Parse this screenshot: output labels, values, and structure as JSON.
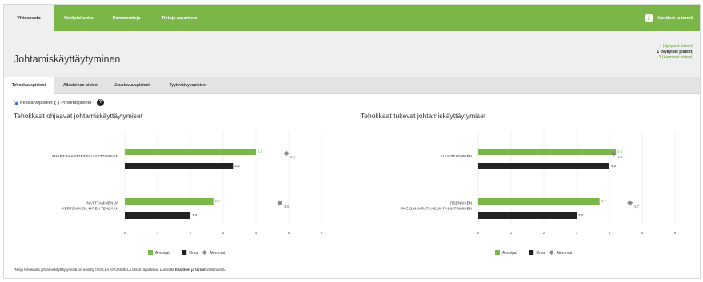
{
  "nav": {
    "tabs": [
      {
        "label": "Yhteenveto",
        "active": true
      },
      {
        "label": "Yksityiskohtia",
        "active": false
      },
      {
        "label": "Kommentteja",
        "active": false
      },
      {
        "label": "Tietoja raportista",
        "active": false
      }
    ],
    "terms_label": "Käsitteet ja termit",
    "terms_icon": "info-icon",
    "accent_color": "#7ab648"
  },
  "header": {
    "title": "Johtamiskäyttäytyminen",
    "legend_lines": [
      {
        "text": "4 (Nykyiset pisteet)",
        "color": "green"
      },
      {
        "text": "1 (Nykyiset pisteet)",
        "color": "dark"
      },
      {
        "text": "3 (Aiemmat pisteet)",
        "color": "green"
      }
    ]
  },
  "subtabs": [
    {
      "label": "Tehokkuuspisteet",
      "active": true
    },
    {
      "label": "Allasteikon pisteet",
      "active": false
    },
    {
      "label": "Joustavuuspisteet",
      "active": false
    },
    {
      "label": "Tyytyväisyyspisteet",
      "active": false
    }
  ],
  "radios": {
    "options": [
      {
        "label": "Keskiarvopisteet",
        "checked": true
      },
      {
        "label": "Prosenttipisteet",
        "checked": false
      }
    ],
    "help_icon": "question-icon"
  },
  "chart_data": [
    {
      "type": "bar",
      "orientation": "horizontal",
      "title": "Tehokkaat ohjaavat johtamiskäyttäytymiset",
      "categories": [
        "SMART-TAVOITTEIDEN ASETTAMINEN",
        "NÄYTTÄMINEN JA KERTOMINEN, MITEN TEHDÄÄN"
      ],
      "series": [
        {
          "name": "Arvioijat",
          "values": [
            4.0,
            2.7
          ],
          "labels": [
            "4,0",
            "2,7"
          ],
          "color": "#7ab648"
        },
        {
          "name": "Oma",
          "values": [
            3.3,
            2.0
          ],
          "labels": [
            "3,3",
            "2,0"
          ],
          "color": "#222222"
        },
        {
          "name": "Aiemmat",
          "values": [
            5.0,
            4.8
          ],
          "labels": [
            "5,0",
            "4,8"
          ],
          "color": "#8a8a8a",
          "marker": "diamond"
        }
      ],
      "xlim": [
        0,
        6
      ],
      "ticks": [
        "0",
        "1",
        "2",
        "3",
        "4",
        "5",
        "6"
      ],
      "grid": true,
      "legend": "bottom"
    },
    {
      "type": "bar",
      "orientation": "horizontal",
      "title": "Tehokkaat tukevat johtamiskäyttäytymiset",
      "categories": [
        "KUUNTELEMINEN",
        "ITSENÄISEN ONGELMANRATKAISUN FASILITOIMINEN"
      ],
      "series": [
        {
          "name": "Arvioijat",
          "values": [
            4.2,
            3.7
          ],
          "labels": [
            "4,2",
            "3,7"
          ],
          "color": "#7ab648"
        },
        {
          "name": "Oma",
          "values": [
            4.0,
            3.0
          ],
          "labels": [
            "4,0",
            "3,0"
          ],
          "color": "#222222"
        },
        {
          "name": "Aiemmat",
          "values": [
            4.2,
            4.7
          ],
          "labels": [
            "4,2",
            "4,7"
          ],
          "color": "#8a8a8a",
          "marker": "diamond"
        }
      ],
      "xlim": [
        0,
        6
      ],
      "ticks": [
        "0",
        "1",
        "2",
        "3",
        "4",
        "5",
        "6"
      ],
      "grid": true,
      "legend": "bottom"
    }
  ],
  "footnote": {
    "text": "*Neljä tehokasta johtamiskäyttäytymistä on esitetty ISOILLA KIRJAIMILLA tässä raportissa. Lue lisää ",
    "bold": "Käsitteet ja termit",
    "tail": "-välilehdeltä."
  }
}
